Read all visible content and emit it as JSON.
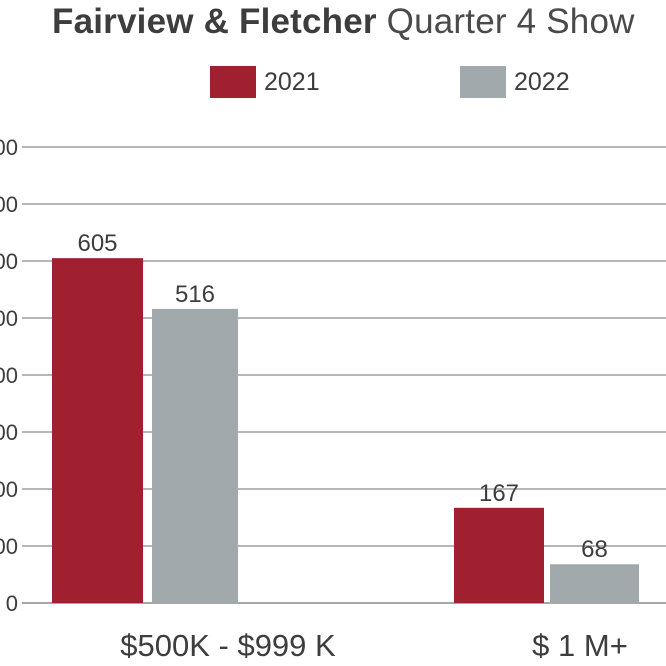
{
  "title_bold": "Fairview & Fletcher",
  "title_rest": " Quarter 4 Show",
  "colors": {
    "s2021": "#a02030",
    "s2022": "#a2a9ad",
    "grid": "#8a8a8a",
    "text": "#3d3d3d"
  },
  "chart_data": {
    "type": "bar",
    "title": "Fairview & Fletcher Quarter 4 Show",
    "categories": [
      "$500K - $999 K",
      "$ 1 M+"
    ],
    "series": [
      {
        "name": "2021",
        "values": [
          605,
          167
        ]
      },
      {
        "name": "2022",
        "values": [
          516,
          68
        ]
      }
    ],
    "ylim": [
      0,
      800
    ],
    "grid": true,
    "legend": "top-center",
    "xlabel": "",
    "ylabel": ""
  }
}
